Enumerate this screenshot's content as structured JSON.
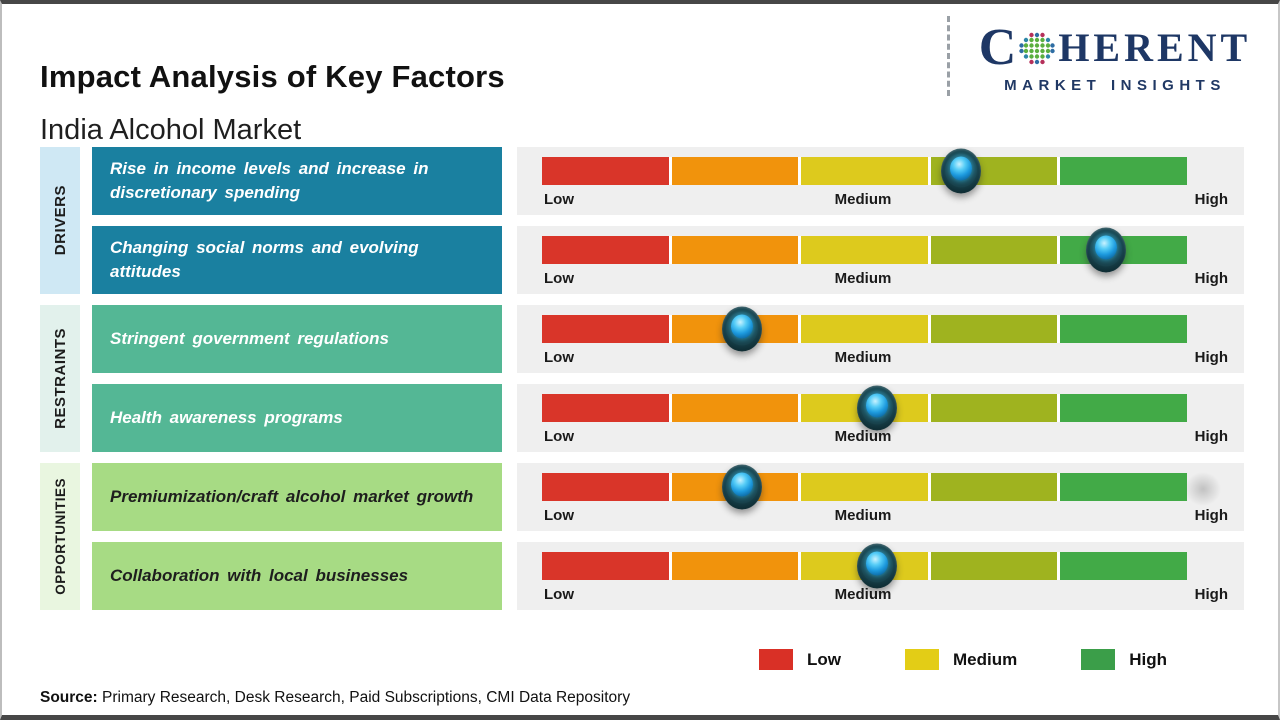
{
  "header": {
    "title": "Impact Analysis of Key Factors",
    "subtitle": "India Alcohol Market"
  },
  "logo": {
    "brand_start": "C",
    "brand_end": "HERENT",
    "tagline": "MARKET INSIGHTS"
  },
  "groups": [
    {
      "label": "DRIVERS"
    },
    {
      "label": "RESTRAINTS"
    },
    {
      "label": "OPPORTUNITIES"
    }
  ],
  "scale_labels": {
    "low": "Low",
    "medium": "Medium",
    "high": "High"
  },
  "rows": [
    {
      "group": "Drivers",
      "factor": "Rise in income levels and increase in discretionary spending",
      "impact_pct": 65,
      "impact_level": "Medium-High"
    },
    {
      "group": "Drivers",
      "factor": "Changing social norms and evolving attitudes",
      "impact_pct": 87.5,
      "impact_level": "High"
    },
    {
      "group": "Restraints",
      "factor": "Stringent government regulations",
      "impact_pct": 31,
      "impact_level": "Low-Medium"
    },
    {
      "group": "Restraints",
      "factor": "Health awareness programs",
      "impact_pct": 52,
      "impact_level": "Medium"
    },
    {
      "group": "Opportunities",
      "factor": "Premiumization/craft alcohol market growth",
      "impact_pct": 31,
      "impact_level": "Low-Medium"
    },
    {
      "group": "Opportunities",
      "factor": "Collaboration with local businesses",
      "impact_pct": 52,
      "impact_level": "Medium"
    }
  ],
  "bar": {
    "segment_colors": [
      "#d93529",
      "#f1930c",
      "#ddca1d",
      "#9fb31f",
      "#42aa47"
    ]
  },
  "legend": {
    "items": [
      {
        "label": "Low",
        "color": "#d93026"
      },
      {
        "label": "Medium",
        "color": "#e3cd16"
      },
      {
        "label": "High",
        "color": "#3b9e49"
      }
    ]
  },
  "source": {
    "prefix": "Source:",
    "text": " Primary Research, Desk Research, Paid Subscriptions, CMI Data Repository"
  },
  "chart_data": {
    "type": "bar",
    "title": "Impact Analysis of Key Factors",
    "subtitle": "India Alcohol Market",
    "scale": {
      "tick_labels": [
        "Low",
        "Medium",
        "High"
      ],
      "range_pct": [
        0,
        100
      ],
      "segments": 5
    },
    "legend_entries": [
      "Low",
      "Medium",
      "High"
    ],
    "legend_position": "bottom-right",
    "categories": [
      "Rise in income levels and increase in discretionary spending",
      "Changing social norms and evolving attitudes",
      "Stringent government regulations",
      "Health awareness programs",
      "Premiumization/craft alcohol market growth",
      "Collaboration with local businesses"
    ],
    "groups": [
      "Drivers",
      "Drivers",
      "Restraints",
      "Restraints",
      "Opportunities",
      "Opportunities"
    ],
    "series": [
      {
        "name": "Impact position (% of Low-High scale)",
        "values": [
          65,
          87.5,
          31,
          52,
          31,
          52
        ]
      }
    ],
    "impact_levels": [
      "Medium-High",
      "High",
      "Low-Medium",
      "Medium",
      "Low-Medium",
      "Medium"
    ]
  }
}
